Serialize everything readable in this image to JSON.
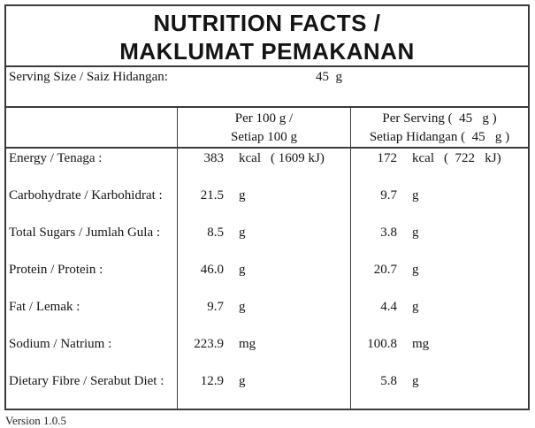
{
  "title": {
    "line1": "NUTRITION FACTS /",
    "line2": "MAKLUMAT PEMAKANAN"
  },
  "serving": {
    "label": "Serving Size / Saiz Hidangan:",
    "value": "45  g"
  },
  "table": {
    "header": {
      "per100": {
        "line1": "Per 100 g /",
        "line2": "Setiap 100 g"
      },
      "perServing": {
        "line1": "Per Serving (  45   g )",
        "line2": "Setiap Hidangan (  45   g )"
      }
    },
    "rows": [
      {
        "label": "Energy / Tenaga :",
        "per100": {
          "value": "383",
          "unit": "kcal",
          "extra": "( 1609 kJ)"
        },
        "serving": {
          "value": "172",
          "unit": "kcal",
          "extra": "(  722   kJ)"
        }
      },
      {
        "label": "Carbohydrate / Karbohidrat :",
        "per100": {
          "value": "21.5",
          "unit": "g",
          "extra": ""
        },
        "serving": {
          "value": "9.7",
          "unit": "g",
          "extra": ""
        }
      },
      {
        "label": "Total Sugars / Jumlah Gula :",
        "per100": {
          "value": "8.5",
          "unit": "g",
          "extra": ""
        },
        "serving": {
          "value": "3.8",
          "unit": "g",
          "extra": ""
        }
      },
      {
        "label": "Protein / Protein :",
        "per100": {
          "value": "46.0",
          "unit": "g",
          "extra": ""
        },
        "serving": {
          "value": "20.7",
          "unit": "g",
          "extra": ""
        }
      },
      {
        "label": "Fat / Lemak :",
        "per100": {
          "value": "9.7",
          "unit": "g",
          "extra": ""
        },
        "serving": {
          "value": "4.4",
          "unit": "g",
          "extra": ""
        }
      },
      {
        "label": "Sodium / Natrium :",
        "per100": {
          "value": "223.9",
          "unit": "mg",
          "extra": ""
        },
        "serving": {
          "value": "100.8",
          "unit": "mg",
          "extra": ""
        }
      },
      {
        "label": "Dietary Fibre / Serabut Diet :",
        "per100": {
          "value": "12.9",
          "unit": "g",
          "extra": ""
        },
        "serving": {
          "value": "5.8",
          "unit": "g",
          "extra": ""
        }
      }
    ]
  },
  "footer": {
    "text": "Version 1.0.5"
  },
  "colors": {
    "border": "#3b3b3b",
    "text": "#141414",
    "background": "#ffffff"
  }
}
